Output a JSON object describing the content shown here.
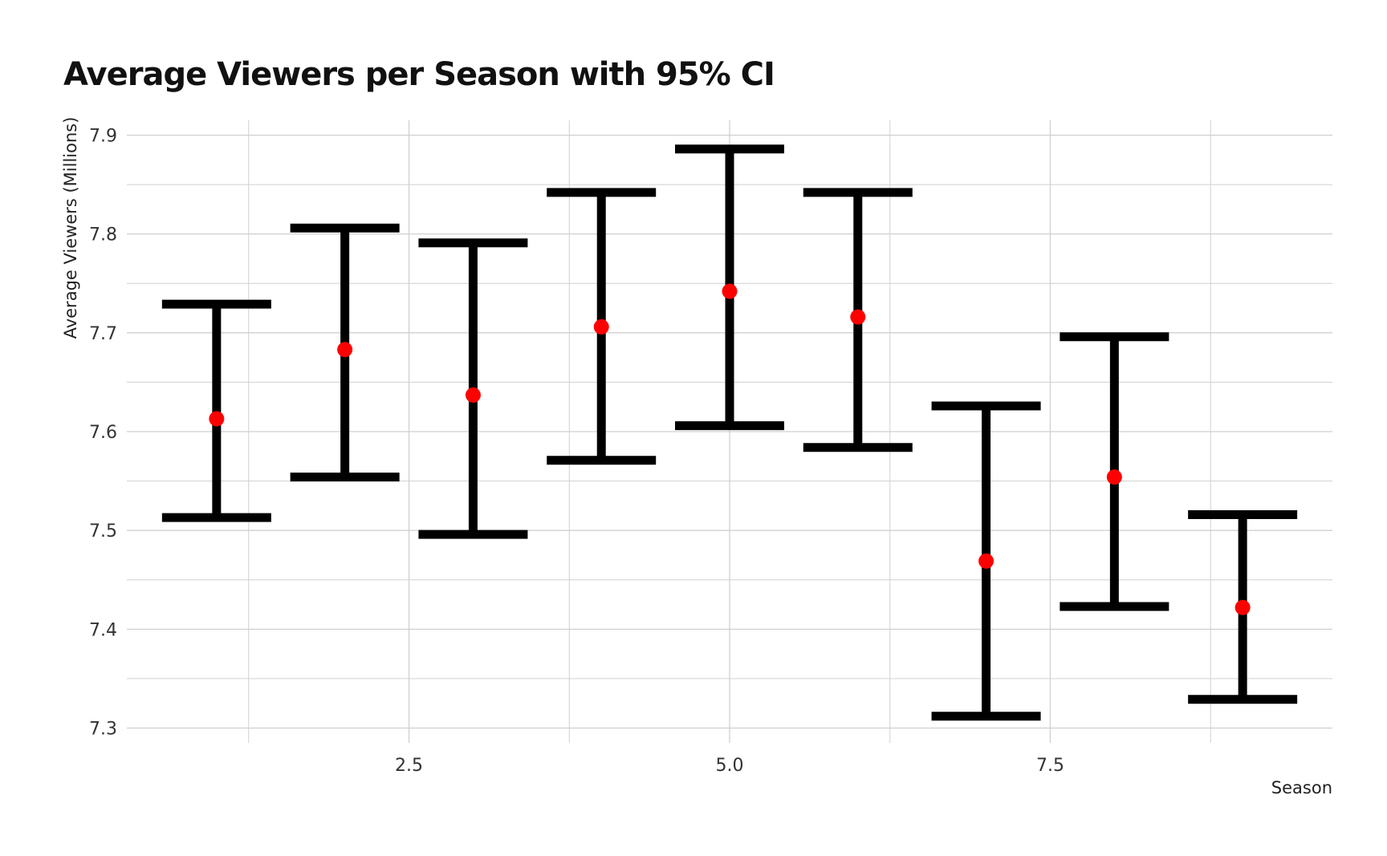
{
  "chart_data": {
    "type": "errorbar",
    "title": "Average Viewers per Season with 95% CI",
    "xlabel": "Season",
    "ylabel": "Average Viewers (Millions)",
    "xlim": [
      0.3,
      9.7
    ],
    "ylim": [
      7.285,
      7.915
    ],
    "xticks": [
      2.5,
      5.0,
      7.5
    ],
    "xtick_labels": [
      "2.5",
      "5.0",
      "7.5"
    ],
    "yticks": [
      7.3,
      7.4,
      7.5,
      7.6,
      7.7,
      7.8,
      7.9
    ],
    "ytick_labels": [
      "7.3",
      "7.4",
      "7.5",
      "7.6",
      "7.7",
      "7.8",
      "7.9"
    ],
    "grid": true,
    "points": [
      {
        "x": 1,
        "y": 7.613,
        "lower": 7.513,
        "upper": 7.729
      },
      {
        "x": 2,
        "y": 7.683,
        "lower": 7.554,
        "upper": 7.806
      },
      {
        "x": 3,
        "y": 7.637,
        "lower": 7.496,
        "upper": 7.791
      },
      {
        "x": 4,
        "y": 7.706,
        "lower": 7.571,
        "upper": 7.842
      },
      {
        "x": 5,
        "y": 7.742,
        "lower": 7.606,
        "upper": 7.886
      },
      {
        "x": 6,
        "y": 7.716,
        "lower": 7.584,
        "upper": 7.842
      },
      {
        "x": 7,
        "y": 7.469,
        "lower": 7.312,
        "upper": 7.626
      },
      {
        "x": 8,
        "y": 7.554,
        "lower": 7.423,
        "upper": 7.696
      },
      {
        "x": 9,
        "y": 7.422,
        "lower": 7.329,
        "upper": 7.516
      }
    ],
    "point_color": "#ff0000",
    "errorbar_color": "#000000",
    "grid_color": "#d0d0d0",
    "text_color": "#333333"
  }
}
